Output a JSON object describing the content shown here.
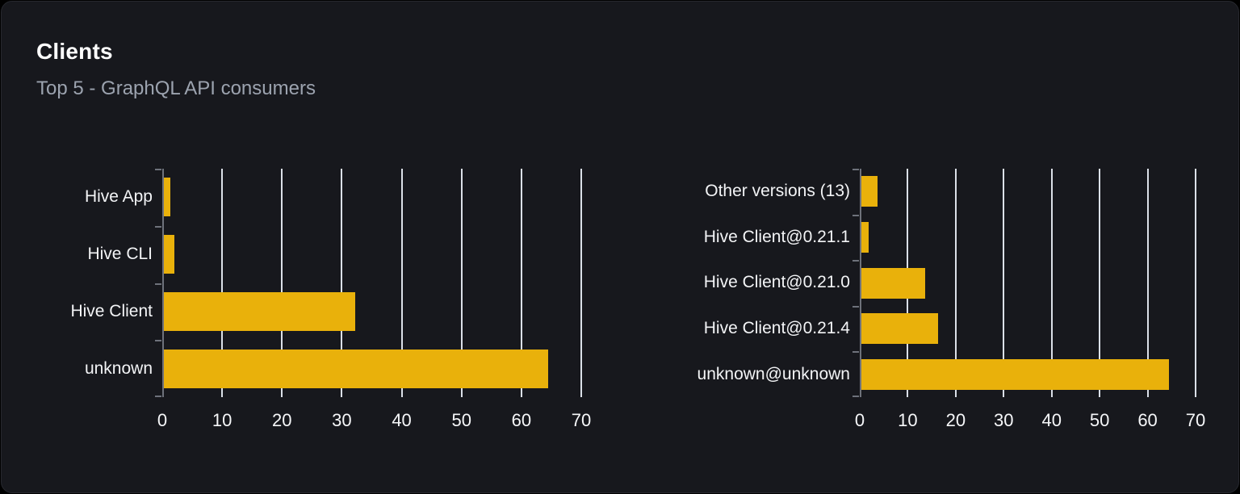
{
  "card": {
    "title": "Clients",
    "subtitle": "Top 5 - GraphQL API consumers"
  },
  "colors": {
    "bar": "#e9b10b",
    "gridline": "#dbe0e8",
    "axis": "#6e727b",
    "card_background": "#17181d",
    "page_background": "#000000",
    "title_text": "#ffffff",
    "subtitle_text": "#9ca3af",
    "label_text": "#f3f4f6"
  },
  "chart_data": [
    {
      "type": "bar",
      "orientation": "horizontal",
      "title": "",
      "categories": [
        "Hive App",
        "Hive CLI",
        "Hive Client",
        "unknown"
      ],
      "values": [
        1.3,
        2.0,
        32.3,
        64.5
      ],
      "xlabel": "",
      "ylabel": "",
      "xlim": [
        0,
        70
      ],
      "xticks": [
        0,
        10,
        20,
        30,
        40,
        50,
        60,
        70
      ],
      "grid": true,
      "legend": false
    },
    {
      "type": "bar",
      "orientation": "horizontal",
      "title": "",
      "categories": [
        "Other versions (13)",
        "Hive Client@0.21.1",
        "Hive Client@0.21.0",
        "Hive Client@0.21.4",
        "unknown@unknown"
      ],
      "values": [
        3.7,
        1.8,
        13.6,
        16.4,
        64.4
      ],
      "xlabel": "",
      "ylabel": "",
      "xlim": [
        0,
        70
      ],
      "xticks": [
        0,
        10,
        20,
        30,
        40,
        50,
        60,
        70
      ],
      "grid": true,
      "legend": false
    }
  ],
  "layout_meta": {
    "left_chart_plot_width": 519,
    "right_chart_plot_width": 416
  }
}
